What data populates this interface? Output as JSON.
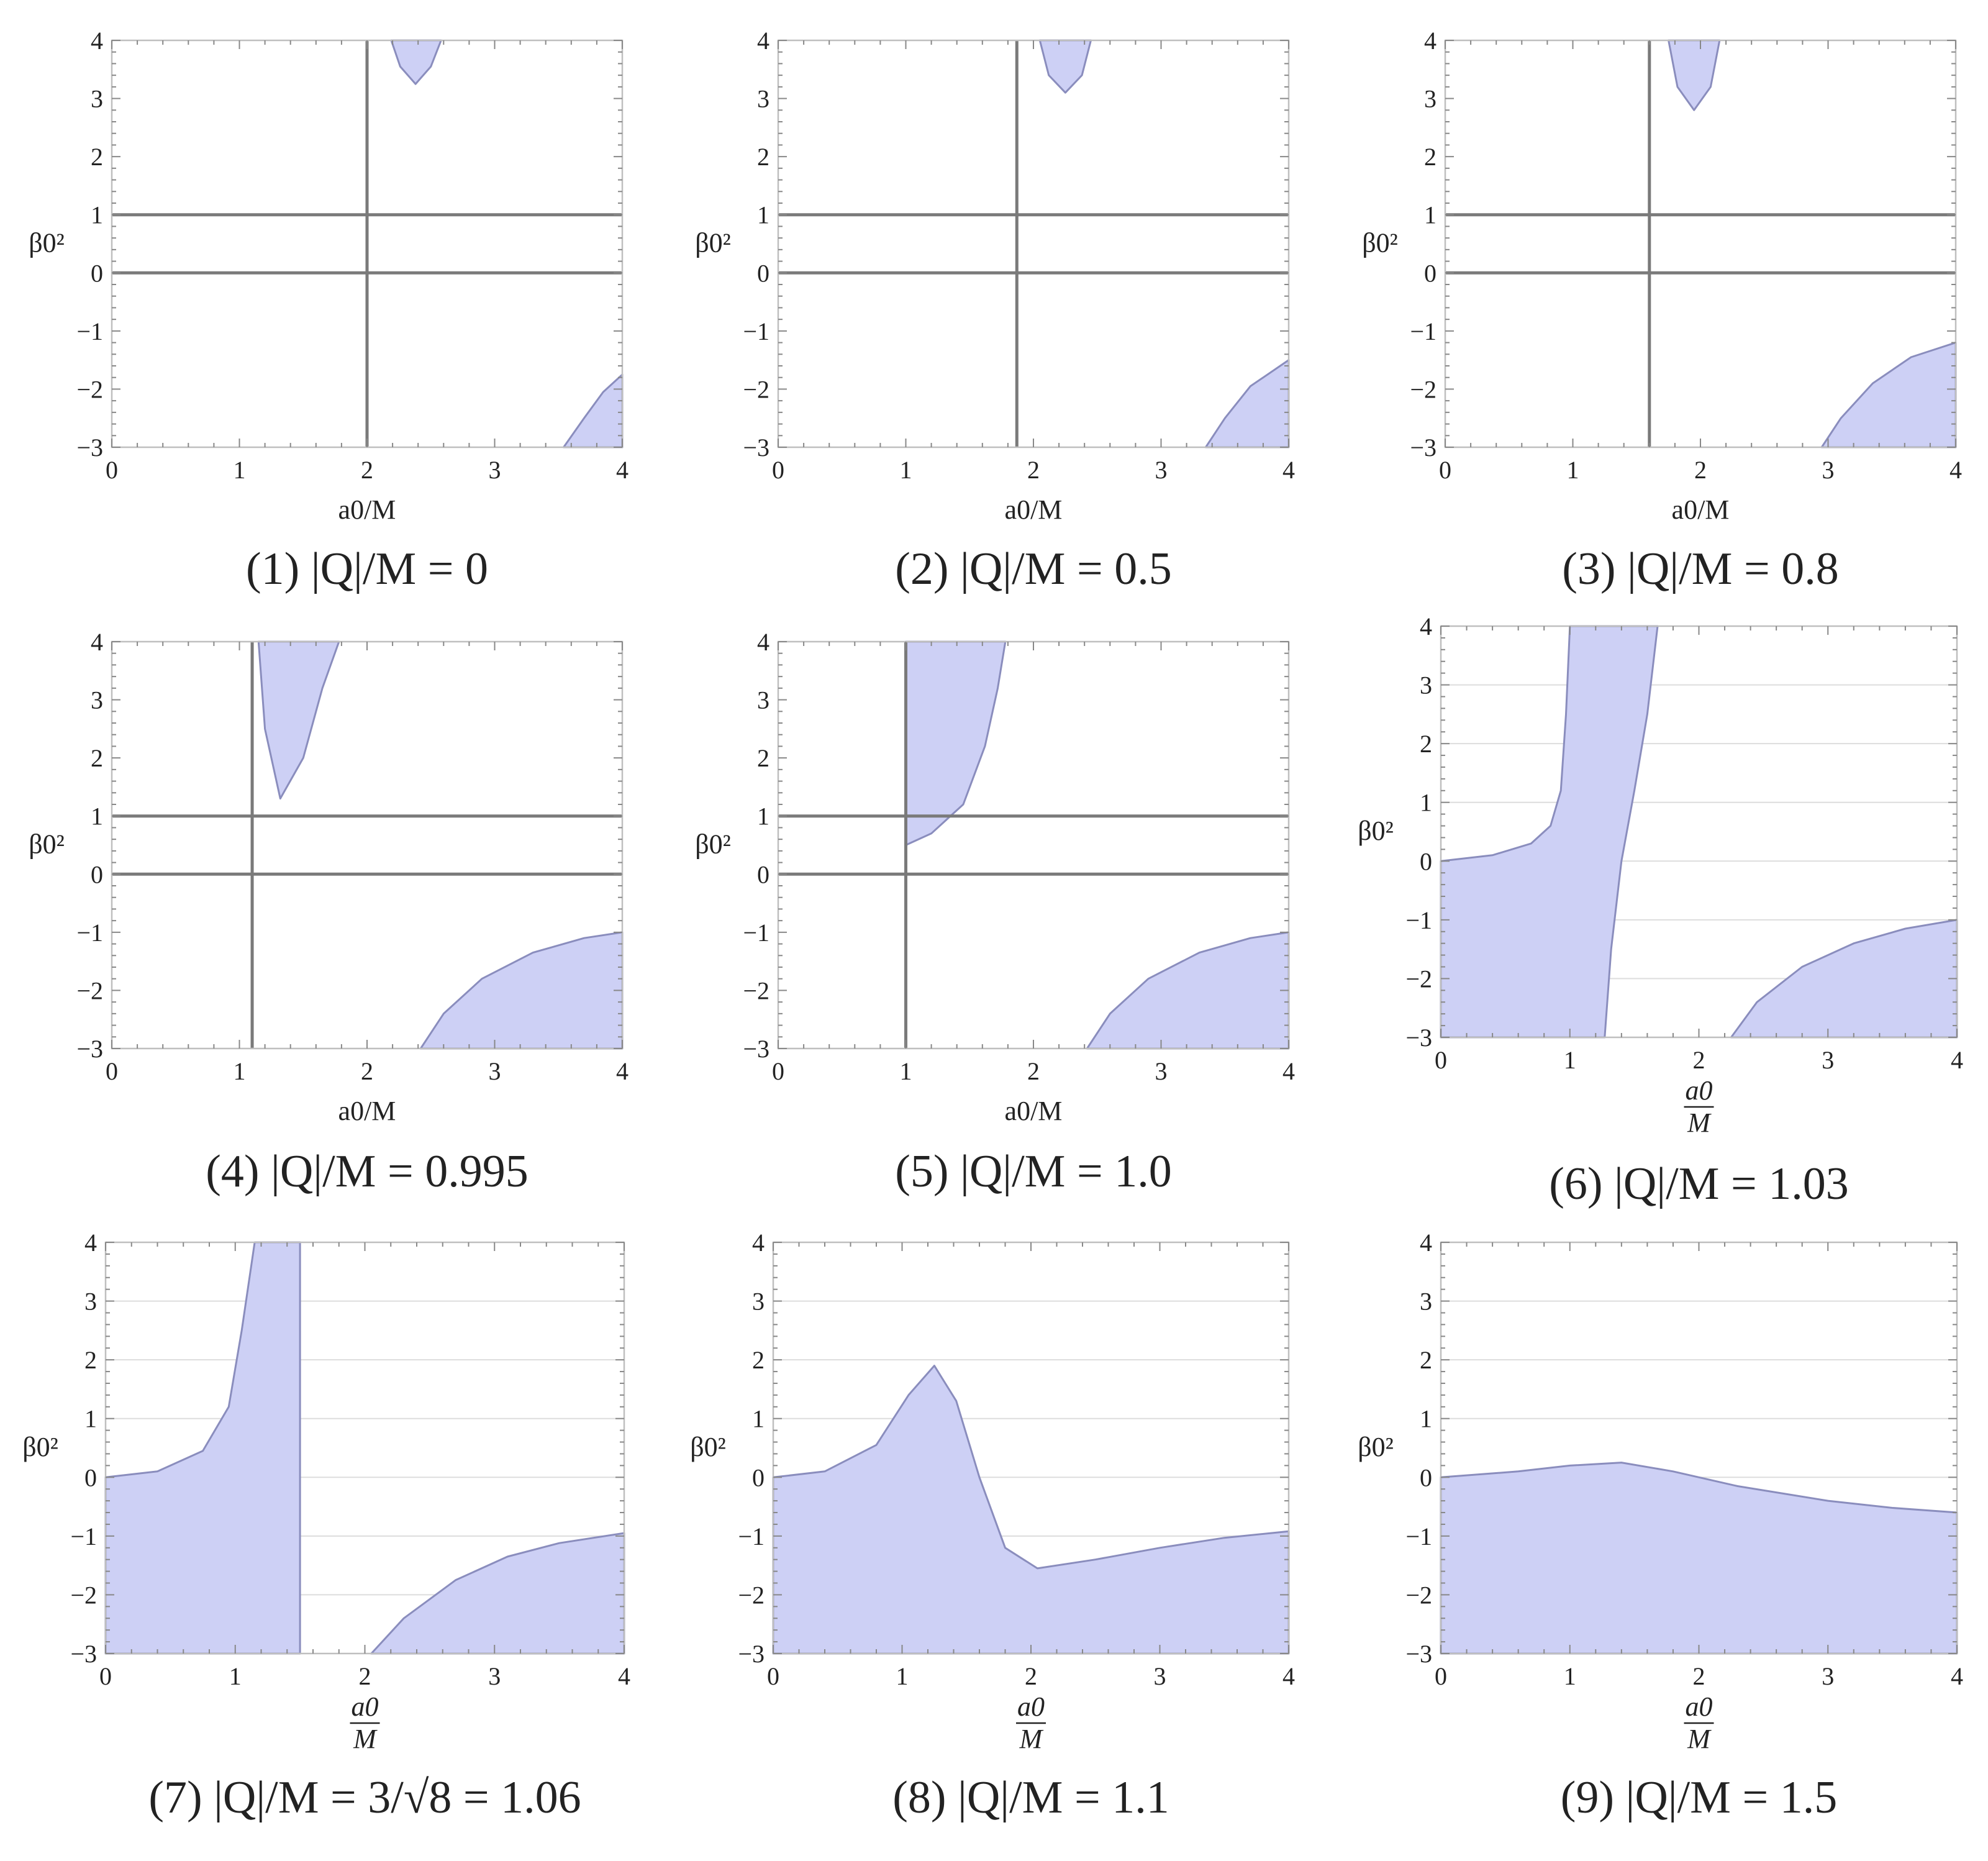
{
  "colors": {
    "fill": "#cdd0f5",
    "boundary": "#8a8dbd",
    "ref_line": "#7a7a7a",
    "grid": "#dddddd",
    "frame": "#bfbfbf"
  },
  "chart_data": [
    {
      "type": "area",
      "caption": "(1) |Q|/M = 0",
      "xlabel": "a0/M",
      "xlabel_style": "inline",
      "ylabel": "β0²",
      "xlim": [
        0,
        4
      ],
      "ylim": [
        -3,
        4
      ],
      "xticks": [
        "0",
        "1",
        "2",
        "3",
        "4"
      ],
      "yticks": [
        "4",
        "3",
        "2",
        "1",
        "0",
        "−1",
        "−2",
        "−3"
      ],
      "vlines": [
        2.0
      ],
      "hlines": [
        0,
        1
      ],
      "gridlines": false,
      "regions": [
        {
          "name": "upper lobe",
          "points": [
            [
              2.19,
              4
            ],
            [
              2.26,
              3.55
            ],
            [
              2.38,
              3.25
            ],
            [
              2.5,
              3.55
            ],
            [
              2.58,
              4
            ]
          ]
        },
        {
          "name": "lower-right region",
          "points": [
            [
              3.54,
              -3
            ],
            [
              3.7,
              -2.5
            ],
            [
              3.85,
              -2.05
            ],
            [
              4,
              -1.75
            ],
            [
              4,
              -3
            ]
          ]
        }
      ]
    },
    {
      "type": "area",
      "caption": "(2) |Q|/M = 0.5",
      "xlabel": "a0/M",
      "xlabel_style": "inline",
      "ylabel": "β0²",
      "xlim": [
        0,
        4
      ],
      "ylim": [
        -3,
        4
      ],
      "xticks": [
        "0",
        "1",
        "2",
        "3",
        "4"
      ],
      "yticks": [
        "4",
        "3",
        "2",
        "1",
        "0",
        "−1",
        "−2",
        "−3"
      ],
      "vlines": [
        1.87
      ],
      "hlines": [
        0,
        1
      ],
      "gridlines": false,
      "regions": [
        {
          "name": "upper lobe",
          "points": [
            [
              2.05,
              4
            ],
            [
              2.12,
              3.4
            ],
            [
              2.25,
              3.1
            ],
            [
              2.38,
              3.4
            ],
            [
              2.45,
              4
            ]
          ]
        },
        {
          "name": "lower-right region",
          "points": [
            [
              3.35,
              -3
            ],
            [
              3.5,
              -2.5
            ],
            [
              3.7,
              -1.95
            ],
            [
              4,
              -1.5
            ],
            [
              4,
              -3
            ]
          ]
        }
      ]
    },
    {
      "type": "area",
      "caption": "(3) |Q|/M = 0.8",
      "xlabel": "a0/M",
      "xlabel_style": "inline",
      "ylabel": "β0²",
      "xlim": [
        0,
        4
      ],
      "ylim": [
        -3,
        4
      ],
      "xticks": [
        "0",
        "1",
        "2",
        "3",
        "4"
      ],
      "yticks": [
        "4",
        "3",
        "2",
        "1",
        "0",
        "−1",
        "−2",
        "−3"
      ],
      "vlines": [
        1.6
      ],
      "hlines": [
        0,
        1
      ],
      "gridlines": false,
      "regions": [
        {
          "name": "upper lobe",
          "points": [
            [
              1.75,
              4
            ],
            [
              1.82,
              3.2
            ],
            [
              1.95,
              2.8
            ],
            [
              2.08,
              3.2
            ],
            [
              2.15,
              4
            ]
          ]
        },
        {
          "name": "lower-right region",
          "points": [
            [
              2.95,
              -3
            ],
            [
              3.1,
              -2.5
            ],
            [
              3.35,
              -1.9
            ],
            [
              3.65,
              -1.45
            ],
            [
              4,
              -1.2
            ],
            [
              4,
              -3
            ]
          ]
        }
      ]
    },
    {
      "type": "area",
      "caption": "(4) |Q|/M = 0.995",
      "xlabel": "a0/M",
      "xlabel_style": "inline",
      "ylabel": "β0²",
      "xlim": [
        0,
        4
      ],
      "ylim": [
        -3,
        4
      ],
      "xticks": [
        "0",
        "1",
        "2",
        "3",
        "4"
      ],
      "yticks": [
        "4",
        "3",
        "2",
        "1",
        "0",
        "−1",
        "−2",
        "−3"
      ],
      "vlines": [
        1.1
      ],
      "hlines": [
        0,
        1
      ],
      "gridlines": false,
      "regions": [
        {
          "name": "upper lobe",
          "points": [
            [
              1.15,
              4
            ],
            [
              1.2,
              2.5
            ],
            [
              1.32,
              1.3
            ],
            [
              1.5,
              2.0
            ],
            [
              1.65,
              3.2
            ],
            [
              1.78,
              4
            ]
          ]
        },
        {
          "name": "lower-right region",
          "points": [
            [
              2.42,
              -3
            ],
            [
              2.6,
              -2.4
            ],
            [
              2.9,
              -1.8
            ],
            [
              3.3,
              -1.35
            ],
            [
              3.7,
              -1.1
            ],
            [
              4,
              -1.0
            ],
            [
              4,
              -3
            ]
          ]
        }
      ]
    },
    {
      "type": "area",
      "caption": "(5) |Q|/M = 1.0",
      "xlabel": "a0/M",
      "xlabel_style": "inline",
      "ylabel": "β0²",
      "xlim": [
        0,
        4
      ],
      "ylim": [
        -3,
        4
      ],
      "xticks": [
        "0",
        "1",
        "2",
        "3",
        "4"
      ],
      "yticks": [
        "4",
        "3",
        "2",
        "1",
        "0",
        "−1",
        "−2",
        "−3"
      ],
      "vlines": [
        1.0
      ],
      "hlines": [
        0,
        1
      ],
      "gridlines": false,
      "regions": [
        {
          "name": "upper region",
          "points": [
            [
              1.0,
              4
            ],
            [
              1.0,
              0.5
            ],
            [
              1.2,
              0.7
            ],
            [
              1.45,
              1.2
            ],
            [
              1.62,
              2.2
            ],
            [
              1.72,
              3.2
            ],
            [
              1.78,
              4
            ]
          ]
        },
        {
          "name": "lower-right region",
          "points": [
            [
              2.42,
              -3
            ],
            [
              2.6,
              -2.4
            ],
            [
              2.9,
              -1.8
            ],
            [
              3.3,
              -1.35
            ],
            [
              3.7,
              -1.1
            ],
            [
              4,
              -1.0
            ],
            [
              4,
              -3
            ]
          ]
        }
      ]
    },
    {
      "type": "area",
      "caption": "(6) |Q|/M = 1.03",
      "xlabel": "a0/M",
      "xlabel_style": "fraction",
      "ylabel": "β0²",
      "xlim": [
        0,
        4
      ],
      "ylim": [
        -3,
        4
      ],
      "xticks": [
        "0",
        "1",
        "2",
        "3",
        "4"
      ],
      "yticks": [
        "4",
        "3",
        "2",
        "1",
        "0",
        "−1",
        "−2",
        "−3"
      ],
      "vlines": [],
      "hlines": [],
      "gridlines": true,
      "regions": [
        {
          "name": "left region",
          "points": [
            [
              0,
              0
            ],
            [
              0.4,
              0.1
            ],
            [
              0.7,
              0.3
            ],
            [
              0.85,
              0.6
            ],
            [
              0.93,
              1.2
            ],
            [
              0.97,
              2.5
            ],
            [
              1.0,
              4
            ],
            [
              1.68,
              4
            ],
            [
              1.6,
              2.5
            ],
            [
              1.5,
              1.2
            ],
            [
              1.4,
              0
            ],
            [
              1.32,
              -1.5
            ],
            [
              1.27,
              -3
            ],
            [
              0,
              -3
            ]
          ]
        },
        {
          "name": "lower-right region",
          "points": [
            [
              2.25,
              -3
            ],
            [
              2.45,
              -2.4
            ],
            [
              2.8,
              -1.8
            ],
            [
              3.2,
              -1.4
            ],
            [
              3.6,
              -1.15
            ],
            [
              4,
              -1.0
            ],
            [
              4,
              -3
            ]
          ]
        }
      ]
    },
    {
      "type": "area",
      "caption": "(7) |Q|/M = 3/√8 = 1.06",
      "xlabel": "a0/M",
      "xlabel_style": "fraction",
      "ylabel": "β0²",
      "xlim": [
        0,
        4
      ],
      "ylim": [
        -3,
        4
      ],
      "xticks": [
        "0",
        "1",
        "2",
        "3",
        "4"
      ],
      "yticks": [
        "4",
        "3",
        "2",
        "1",
        "0",
        "−1",
        "−2",
        "−3"
      ],
      "vlines": [],
      "hlines": [],
      "gridlines": true,
      "regions": [
        {
          "name": "left region",
          "points": [
            [
              0,
              0
            ],
            [
              0.4,
              0.1
            ],
            [
              0.75,
              0.45
            ],
            [
              0.95,
              1.2
            ],
            [
              1.05,
              2.5
            ],
            [
              1.15,
              4
            ],
            [
              1.5,
              4
            ],
            [
              1.5,
              -3
            ],
            [
              0,
              -3
            ]
          ]
        },
        {
          "name": "lower-right region",
          "points": [
            [
              2.05,
              -3
            ],
            [
              2.3,
              -2.4
            ],
            [
              2.7,
              -1.75
            ],
            [
              3.1,
              -1.35
            ],
            [
              3.5,
              -1.12
            ],
            [
              4,
              -0.95
            ],
            [
              4,
              -3
            ]
          ]
        }
      ]
    },
    {
      "type": "area",
      "caption": "(8) |Q|/M = 1.1",
      "xlabel": "a0/M",
      "xlabel_style": "fraction",
      "ylabel": "β0²",
      "xlim": [
        0,
        4
      ],
      "ylim": [
        -3,
        4
      ],
      "xticks": [
        "0",
        "1",
        "2",
        "3",
        "4"
      ],
      "yticks": [
        "4",
        "3",
        "2",
        "1",
        "0",
        "−1",
        "−2",
        "−3"
      ],
      "vlines": [],
      "hlines": [],
      "gridlines": true,
      "regions": [
        {
          "name": "region",
          "points": [
            [
              0,
              0
            ],
            [
              0.4,
              0.1
            ],
            [
              0.8,
              0.55
            ],
            [
              1.05,
              1.4
            ],
            [
              1.25,
              1.9
            ],
            [
              1.42,
              1.3
            ],
            [
              1.6,
              0
            ],
            [
              1.8,
              -1.2
            ],
            [
              2.05,
              -1.55
            ],
            [
              2.5,
              -1.4
            ],
            [
              3.0,
              -1.2
            ],
            [
              3.5,
              -1.03
            ],
            [
              4,
              -0.92
            ],
            [
              4,
              -3
            ],
            [
              0,
              -3
            ]
          ]
        }
      ]
    },
    {
      "type": "area",
      "caption": "(9) |Q|/M = 1.5",
      "xlabel": "a0/M",
      "xlabel_style": "fraction",
      "ylabel": "β0²",
      "xlim": [
        0,
        4
      ],
      "ylim": [
        -3,
        4
      ],
      "xticks": [
        "0",
        "1",
        "2",
        "3",
        "4"
      ],
      "yticks": [
        "4",
        "3",
        "2",
        "1",
        "0",
        "−1",
        "−2",
        "−3"
      ],
      "vlines": [],
      "hlines": [],
      "gridlines": true,
      "regions": [
        {
          "name": "region",
          "points": [
            [
              0,
              0
            ],
            [
              0.6,
              0.1
            ],
            [
              1.0,
              0.2
            ],
            [
              1.4,
              0.25
            ],
            [
              1.8,
              0.1
            ],
            [
              2.3,
              -0.15
            ],
            [
              3.0,
              -0.4
            ],
            [
              3.5,
              -0.52
            ],
            [
              4,
              -0.6
            ],
            [
              4,
              -3
            ],
            [
              0,
              -3
            ]
          ]
        }
      ]
    }
  ]
}
